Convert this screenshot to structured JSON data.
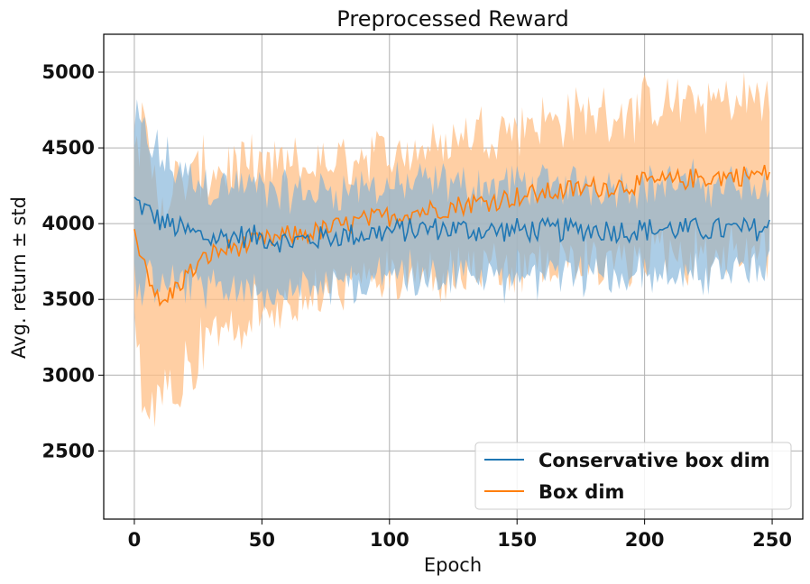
{
  "chart_data": {
    "type": "line",
    "title": "Preprocessed Reward",
    "xlabel": "Epoch",
    "ylabel": "Avg. return ± std",
    "xlim": [
      -12,
      262
    ],
    "ylim": [
      2050,
      5250
    ],
    "xticks": [
      0,
      50,
      100,
      150,
      200,
      250
    ],
    "xtick_labels": [
      "0",
      "50",
      "100",
      "150",
      "200",
      "250"
    ],
    "yticks": [
      2500,
      3000,
      3500,
      4000,
      4500,
      5000
    ],
    "ytick_labels": [
      "2500",
      "3000",
      "3500",
      "4000",
      "4500",
      "5000"
    ],
    "grid": true,
    "legend_position": "lower-right",
    "series": [
      {
        "name": "Conservative box dim",
        "color": "#1f77b4",
        "band_color": "#7fb2d9",
        "x": [
          0,
          10,
          20,
          30,
          40,
          50,
          60,
          70,
          80,
          90,
          100,
          110,
          120,
          130,
          140,
          150,
          160,
          170,
          180,
          190,
          200,
          210,
          220,
          230,
          240,
          249
        ],
        "mean": [
          4150,
          4020,
          3950,
          3900,
          3920,
          3910,
          3880,
          3900,
          3920,
          3930,
          3950,
          3960,
          3970,
          3960,
          3950,
          3960,
          3955,
          3960,
          3960,
          3955,
          3960,
          3965,
          3960,
          3960,
          3960,
          3970
        ],
        "std": [
          500,
          420,
          370,
          350,
          330,
          320,
          320,
          310,
          310,
          305,
          300,
          300,
          300,
          295,
          300,
          310,
          300,
          300,
          300,
          300,
          300,
          300,
          305,
          300,
          300,
          300
        ]
      },
      {
        "name": "Box dim",
        "color": "#ff7f0e",
        "band_color": "#ffbf86",
        "x": [
          0,
          10,
          20,
          30,
          40,
          50,
          60,
          70,
          80,
          90,
          100,
          110,
          120,
          130,
          140,
          150,
          160,
          170,
          180,
          190,
          200,
          210,
          220,
          230,
          240,
          249
        ],
        "mean": [
          3950,
          3450,
          3650,
          3800,
          3850,
          3880,
          3920,
          3940,
          3980,
          4020,
          4050,
          4080,
          4100,
          4130,
          4150,
          4180,
          4200,
          4220,
          4240,
          4250,
          4270,
          4280,
          4300,
          4310,
          4320,
          4330
        ],
        "std": [
          800,
          700,
          620,
          560,
          520,
          480,
          460,
          440,
          430,
          420,
          420,
          420,
          430,
          460,
          480,
          480,
          480,
          480,
          490,
          490,
          490,
          500,
          500,
          500,
          500,
          500
        ]
      }
    ]
  }
}
